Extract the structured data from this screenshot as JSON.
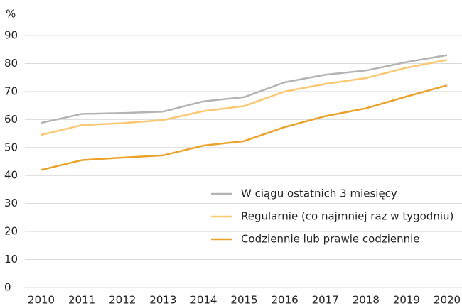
{
  "chart_data": {
    "type": "line",
    "y_label": "%",
    "categories": [
      "2010",
      "2011",
      "2012",
      "2013",
      "2014",
      "2015",
      "2016",
      "2017",
      "2018",
      "2019",
      "2020"
    ],
    "series": [
      {
        "name": "W ciągu ostatnich 3 miesięcy",
        "color": "#b3b3b3",
        "values": [
          58.8,
          62,
          62.3,
          62.8,
          66.5,
          68,
          73.3,
          76,
          77.5,
          80.5,
          83
        ]
      },
      {
        "name": "Regularnie (co najmniej raz w tygodniu)",
        "color": "#fcc771",
        "values": [
          54.5,
          58,
          58.7,
          59.8,
          63,
          64.8,
          70,
          72.7,
          74.8,
          78.5,
          81.3
        ]
      },
      {
        "name": "Codziennie lub prawie codziennie",
        "color": "#eaa22a",
        "values": [
          42,
          45.5,
          46.4,
          47.2,
          50.7,
          52.3,
          57.3,
          61.2,
          64,
          68.2,
          72.2
        ]
      }
    ],
    "ylim": [
      0,
      90
    ],
    "yticks": [
      0,
      10,
      20,
      30,
      40,
      50,
      60,
      70,
      80,
      90
    ],
    "grid": true,
    "legend": "lower-right"
  }
}
